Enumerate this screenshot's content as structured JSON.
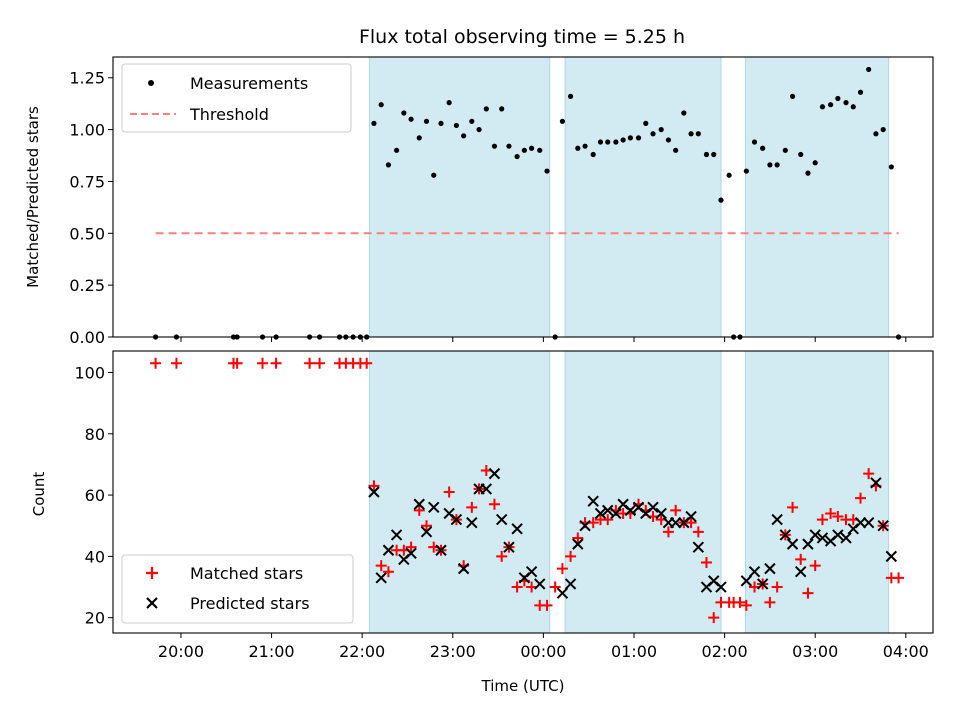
{
  "figure": {
    "title": "Flux total observing time = 5.25 h",
    "background": "#ffffff"
  },
  "chart_data": [
    {
      "type": "scatter",
      "panel": "top",
      "title": "Flux total observing time = 5.25 h",
      "xlabel": "",
      "ylabel": "Matched/Predicted stars",
      "x_unit": "time (UTC, hours since 00:00 of first day)",
      "xlim": [
        -4.75,
        4.3
      ],
      "ylim": [
        0.0,
        1.35
      ],
      "yticks": [
        0.0,
        0.25,
        0.5,
        0.75,
        1.0,
        1.25
      ],
      "ytick_labels": [
        "0.00",
        "0.25",
        "0.50",
        "0.75",
        "1.00",
        "1.25"
      ],
      "shaded_intervals": [
        [
          -1.92,
          0.07
        ],
        [
          0.24,
          1.96
        ],
        [
          2.23,
          3.81
        ]
      ],
      "shade_color": "#add8e6",
      "legend": {
        "placement": "top-left",
        "entries": [
          "Measurements",
          "Threshold"
        ]
      },
      "series": [
        {
          "name": "Measurements",
          "marker": "dot",
          "color": "#000000",
          "x": [
            -4.28,
            -4.05,
            -3.42,
            -3.38,
            -3.1,
            -2.95,
            -2.58,
            -2.47,
            -2.25,
            -2.18,
            -2.1,
            -2.02,
            -1.95,
            -1.87,
            -1.79,
            -1.71,
            -1.62,
            -1.54,
            -1.46,
            -1.37,
            -1.29,
            -1.21,
            -1.13,
            -1.04,
            -0.96,
            -0.88,
            -0.79,
            -0.71,
            -0.63,
            -0.54,
            -0.46,
            -0.38,
            -0.29,
            -0.21,
            -0.13,
            -0.04,
            0.04,
            0.13,
            0.21,
            0.3,
            0.38,
            0.46,
            0.55,
            0.63,
            0.71,
            0.8,
            0.88,
            0.96,
            1.05,
            1.13,
            1.21,
            1.3,
            1.38,
            1.46,
            1.55,
            1.63,
            1.71,
            1.8,
            1.88,
            1.96,
            2.05,
            2.1,
            2.17,
            2.24,
            2.33,
            2.42,
            2.5,
            2.58,
            2.67,
            2.75,
            2.84,
            2.92,
            3.0,
            3.08,
            3.17,
            3.25,
            3.34,
            3.42,
            3.5,
            3.59,
            3.67,
            3.75,
            3.84,
            3.92
          ],
          "y": [
            0,
            0,
            0,
            0,
            0,
            0,
            0,
            0,
            0,
            0,
            0,
            0,
            0,
            1.03,
            1.12,
            0.83,
            0.9,
            1.08,
            1.05,
            0.96,
            1.04,
            0.78,
            1.03,
            1.13,
            1.02,
            0.97,
            1.04,
            1.0,
            1.1,
            0.92,
            1.1,
            0.92,
            0.87,
            0.9,
            0.91,
            0.9,
            0.8,
            0,
            1.04,
            1.16,
            0.91,
            0.92,
            0.88,
            0.94,
            0.94,
            0.94,
            0.95,
            0.96,
            0.96,
            1.03,
            0.98,
            1.0,
            0.95,
            0.9,
            1.08,
            0.98,
            0.98,
            0.88,
            0.88,
            0.66,
            0.78,
            0,
            0,
            0.8,
            0.94,
            0.91,
            0.83,
            0.83,
            0.9,
            1.16,
            0.88,
            0.79,
            0.84,
            1.11,
            1.12,
            1.15,
            1.13,
            1.11,
            1.18,
            1.29,
            0.98,
            1.0,
            0.82,
            0
          ]
        },
        {
          "name": "Threshold",
          "style": "dashed-line",
          "color": "#ff7f7f",
          "x": [
            -4.28,
            3.92
          ],
          "y": [
            0.5,
            0.5
          ]
        }
      ]
    },
    {
      "type": "scatter",
      "panel": "bottom",
      "xlabel": "Time (UTC)",
      "ylabel": "Count",
      "x_unit": "time (UTC, hours since 00:00 of first day)",
      "xlim": [
        -4.75,
        4.3
      ],
      "ylim": [
        15,
        107
      ],
      "xticks": [
        -4,
        -3,
        -2,
        -1,
        0,
        1,
        2,
        3,
        4
      ],
      "xtick_labels": [
        "20:00",
        "21:00",
        "22:00",
        "23:00",
        "00:00",
        "01:00",
        "02:00",
        "03:00",
        "04:00"
      ],
      "yticks": [
        20,
        40,
        60,
        80,
        100
      ],
      "ytick_labels": [
        "20",
        "40",
        "60",
        "80",
        "100"
      ],
      "shaded_intervals": [
        [
          -1.92,
          0.07
        ],
        [
          0.24,
          1.96
        ],
        [
          2.23,
          3.81
        ]
      ],
      "shade_color": "#add8e6",
      "legend": {
        "placement": "bottom-left",
        "entries": [
          "Matched stars",
          "Predicted stars"
        ]
      },
      "series": [
        {
          "name": "Matched stars",
          "marker": "plus",
          "color": "#ff0000",
          "x": [
            -4.28,
            -4.05,
            -3.42,
            -3.38,
            -3.1,
            -2.95,
            -2.58,
            -2.47,
            -2.25,
            -2.18,
            -2.1,
            -2.02,
            -1.95,
            -1.87,
            -1.79,
            -1.71,
            -1.62,
            -1.54,
            -1.46,
            -1.37,
            -1.29,
            -1.21,
            -1.13,
            -1.04,
            -0.96,
            -0.88,
            -0.79,
            -0.71,
            -0.63,
            -0.54,
            -0.46,
            -0.38,
            -0.29,
            -0.21,
            -0.13,
            -0.04,
            0.04,
            0.13,
            0.21,
            0.3,
            0.38,
            0.46,
            0.55,
            0.63,
            0.71,
            0.8,
            0.88,
            0.96,
            1.05,
            1.13,
            1.21,
            1.3,
            1.38,
            1.46,
            1.55,
            1.63,
            1.71,
            1.8,
            1.88,
            1.96,
            2.05,
            2.1,
            2.17,
            2.24,
            2.33,
            2.42,
            2.5,
            2.58,
            2.67,
            2.75,
            2.84,
            2.92,
            3.0,
            3.08,
            3.17,
            3.25,
            3.34,
            3.42,
            3.5,
            3.59,
            3.67,
            3.75,
            3.84,
            3.92
          ],
          "y": [
            103,
            103,
            103,
            103,
            103,
            103,
            103,
            103,
            103,
            103,
            103,
            103,
            103,
            63,
            37,
            35,
            42,
            42,
            43,
            55,
            50,
            43,
            42,
            61,
            52,
            37,
            56,
            62,
            68,
            57,
            40,
            43,
            30,
            32,
            30,
            24,
            24,
            30,
            36,
            40,
            46,
            51,
            51,
            52,
            52,
            55,
            54,
            54,
            57,
            55,
            53,
            52,
            48,
            55,
            51,
            51,
            48,
            38,
            20,
            25,
            25,
            25,
            25,
            24,
            30,
            31,
            25,
            30,
            47,
            56,
            39,
            28,
            37,
            52,
            54,
            53,
            52,
            52,
            59,
            67,
            63,
            50,
            33,
            33
          ]
        },
        {
          "name": "Predicted stars",
          "marker": "x",
          "color": "#000000",
          "x": [
            -1.87,
            -1.79,
            -1.71,
            -1.62,
            -1.54,
            -1.46,
            -1.37,
            -1.29,
            -1.21,
            -1.13,
            -1.04,
            -0.96,
            -0.88,
            -0.79,
            -0.71,
            -0.63,
            -0.54,
            -0.46,
            -0.38,
            -0.29,
            -0.21,
            -0.13,
            -0.04,
            0.21,
            0.3,
            0.38,
            0.46,
            0.55,
            0.63,
            0.71,
            0.8,
            0.88,
            0.96,
            1.05,
            1.13,
            1.21,
            1.3,
            1.38,
            1.46,
            1.55,
            1.63,
            1.71,
            1.8,
            1.88,
            1.96,
            2.24,
            2.33,
            2.42,
            2.5,
            2.58,
            2.67,
            2.75,
            2.84,
            2.92,
            3.0,
            3.08,
            3.17,
            3.25,
            3.34,
            3.42,
            3.5,
            3.59,
            3.67,
            3.75,
            3.84
          ],
          "y": [
            61,
            33,
            42,
            47,
            39,
            41,
            57,
            48,
            56,
            42,
            54,
            52,
            36,
            51,
            62,
            62,
            67,
            52,
            43,
            49,
            33,
            35,
            31,
            28,
            31,
            44,
            50,
            58,
            54,
            55,
            54,
            57,
            55,
            56,
            54,
            56,
            54,
            51,
            51,
            51,
            53,
            43,
            30,
            32,
            30,
            32,
            35,
            31,
            36,
            52,
            47,
            44,
            35,
            44,
            47,
            46,
            45,
            47,
            46,
            49,
            51,
            51,
            64,
            50,
            40
          ]
        }
      ]
    }
  ]
}
